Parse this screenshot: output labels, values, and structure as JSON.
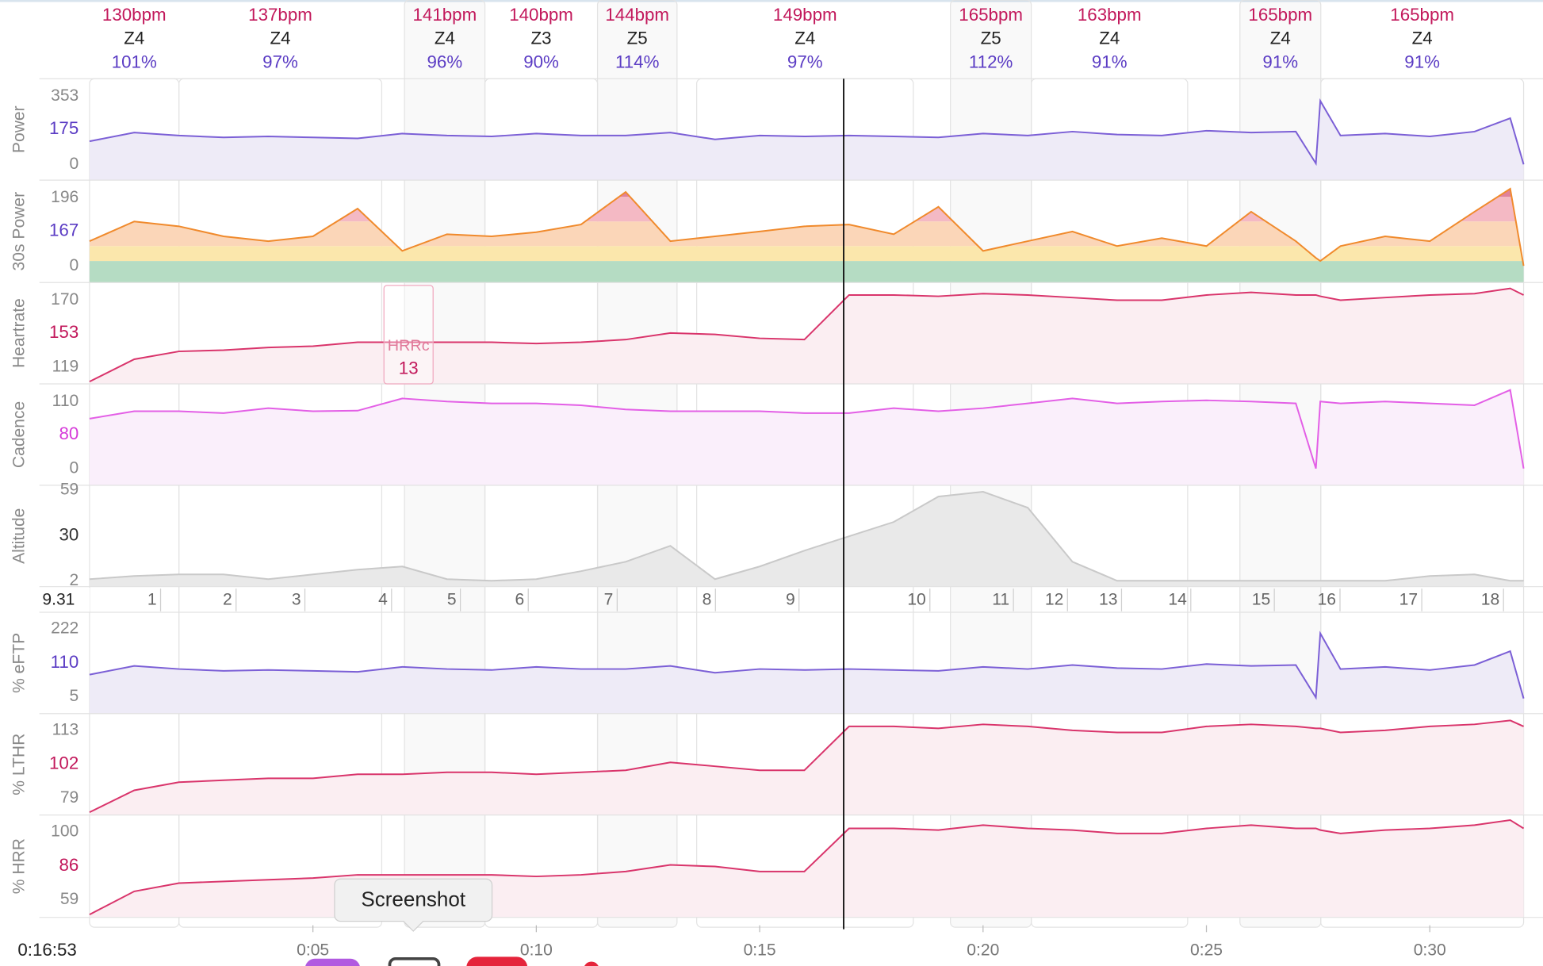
{
  "intervals": [
    {
      "start": 0,
      "end": 2.0,
      "hr": "130bpm",
      "zone": "Z4",
      "percent": "101%",
      "boxed": false
    },
    {
      "start": 2.0,
      "end": 6.54,
      "hr": "137bpm",
      "zone": "Z4",
      "percent": "97%",
      "boxed": false
    },
    {
      "start": 7.05,
      "end": 8.85,
      "hr": "141bpm",
      "zone": "Z4",
      "percent": "96%",
      "boxed": true
    },
    {
      "start": 8.85,
      "end": 11.37,
      "hr": "140bpm",
      "zone": "Z3",
      "percent": "90%",
      "boxed": false
    },
    {
      "start": 11.37,
      "end": 13.15,
      "hr": "144bpm",
      "zone": "Z5",
      "percent": "114%",
      "boxed": true
    },
    {
      "start": 13.59,
      "end": 18.44,
      "hr": "149bpm",
      "zone": "Z4",
      "percent": "97%",
      "boxed": false
    },
    {
      "start": 19.27,
      "end": 21.08,
      "hr": "165bpm",
      "zone": "Z5",
      "percent": "112%",
      "boxed": true
    },
    {
      "start": 21.08,
      "end": 24.58,
      "hr": "163bpm",
      "zone": "Z4",
      "percent": "91%",
      "boxed": false
    },
    {
      "start": 25.75,
      "end": 27.56,
      "hr": "165bpm",
      "zone": "Z4",
      "percent": "91%",
      "boxed": true
    },
    {
      "start": 27.56,
      "end": 32.1,
      "hr": "165bpm",
      "zone": "Z4",
      "percent": "91%",
      "boxed": false
    }
  ],
  "time_axis": {
    "xlim": [
      0,
      32.1
    ],
    "x": [
      0,
      1,
      2,
      3,
      4,
      5,
      6,
      7,
      8,
      9,
      10,
      11,
      12,
      13,
      14,
      15,
      16,
      17,
      18,
      19,
      20,
      21,
      22,
      23,
      24,
      25,
      26,
      27,
      27.45,
      27.55,
      28,
      29,
      30,
      31,
      31.8,
      32.1
    ],
    "xticks": [
      {
        "value": 5,
        "label": "0:05"
      },
      {
        "value": 10,
        "label": "0:10"
      },
      {
        "value": 15,
        "label": "0:15"
      },
      {
        "value": 20,
        "label": "0:20"
      },
      {
        "value": 25,
        "label": "0:25"
      },
      {
        "value": 30,
        "label": "0:30"
      }
    ]
  },
  "cursor": {
    "minute": 16.88,
    "label": "0:16:53",
    "distance": "9.31"
  },
  "distance_markers": {
    "km": [
      1,
      2,
      3,
      4,
      5,
      6,
      7,
      8,
      9,
      10,
      11,
      12,
      13,
      14,
      15,
      16,
      17,
      18
    ],
    "minutes": [
      1.59,
      3.28,
      4.82,
      6.76,
      8.3,
      9.82,
      11.81,
      14.01,
      15.88,
      18.81,
      20.68,
      21.89,
      23.1,
      24.65,
      26.52,
      27.99,
      29.82,
      31.65
    ]
  },
  "hrrc": {
    "start": 6.59,
    "end": 7.69,
    "label": "HRRc",
    "value": 13
  },
  "tooltip": "Screenshot",
  "chart_data": [
    {
      "type": "area",
      "ylabel": "Power",
      "ylim": [
        -82,
        445
      ],
      "yticks": [
        0,
        353
      ],
      "cursor_value": 175,
      "color": "#7b5fd6",
      "fill": "#eeebf7",
      "cursor_color": "#5b3cc4",
      "values": [
        120,
        165,
        150,
        140,
        145,
        140,
        135,
        160,
        150,
        145,
        160,
        150,
        150,
        165,
        130,
        150,
        145,
        150,
        145,
        140,
        160,
        150,
        170,
        155,
        150,
        175,
        165,
        170,
        5,
        330,
        150,
        160,
        145,
        170,
        240,
        0
      ]
    },
    {
      "type": "zone_area",
      "ylabel": "30s Power",
      "ylim": [
        -48,
        247
      ],
      "yticks": [
        0,
        196
      ],
      "cursor_value": 167,
      "color": "#f08a2c",
      "cursor_color": "#5b3cc4",
      "zones": [
        {
          "upto": 14,
          "color": "#b5dcc3"
        },
        {
          "upto": 57,
          "color": "#fbe7ac"
        },
        {
          "upto": 128,
          "color": "#fbd6b8"
        },
        {
          "upto": 199,
          "color": "#f4b9c4"
        },
        {
          "upto": 247,
          "color": "#e0829c"
        }
      ],
      "values": [
        71,
        128,
        114,
        85,
        71,
        85,
        165,
        43,
        91,
        85,
        97,
        119,
        213,
        71,
        85,
        99,
        114,
        119,
        91,
        170,
        43,
        71,
        99,
        57,
        80,
        57,
        156,
        71,
        23,
        14,
        57,
        85,
        71,
        156,
        222,
        0
      ]
    },
    {
      "type": "area",
      "ylabel": "Heartrate",
      "ylim": [
        106.25,
        183.5
      ],
      "yticks": [
        119,
        170
      ],
      "cursor_value": 153,
      "color": "#d9346b",
      "fill": "#fbeef2",
      "cursor_color": "#c2185b",
      "values": [
        108,
        125,
        131,
        132,
        134,
        135,
        138,
        138,
        138,
        138,
        137,
        138,
        140,
        145,
        144,
        141,
        140,
        174,
        174,
        173,
        175,
        174,
        172,
        170,
        170,
        174,
        176,
        174,
        174,
        173,
        170,
        172,
        174,
        175,
        179,
        174
      ]
    },
    {
      "type": "area",
      "ylabel": "Cadence",
      "ylim": [
        -27.5,
        139
      ],
      "yticks": [
        0,
        110
      ],
      "cursor_value": 80,
      "color": "#e35fe6",
      "fill": "#faeffb",
      "cursor_color": "#d63cd9",
      "values": [
        82,
        94,
        94,
        91,
        99,
        94,
        95,
        115,
        110,
        107,
        107,
        104,
        97,
        94,
        94,
        94,
        91,
        91,
        99,
        94,
        99,
        107,
        115,
        107,
        110,
        112,
        110,
        107,
        0,
        110,
        107,
        110,
        107,
        104,
        129,
        0
      ]
    },
    {
      "type": "area",
      "ylabel": "Altitude",
      "ylim": [
        -1.7,
        62.1
      ],
      "yticks": [
        2,
        59
      ],
      "cursor_value": 30,
      "color": "#c9c9c9",
      "fill": "#e9e9e9",
      "cursor_color": "#333333",
      "values": [
        3,
        5,
        6,
        6,
        3,
        6,
        9,
        11,
        3,
        2,
        3,
        8,
        14,
        24,
        3,
        11,
        21,
        30,
        39,
        55,
        58,
        48,
        14,
        2,
        2,
        2,
        2,
        2,
        2,
        2,
        2,
        2,
        5,
        6,
        2,
        2
      ]
    },
    {
      "type": "area",
      "ylabel": "% eFTP",
      "ylim": [
        -48.5,
        275.5
      ],
      "yticks": [
        5,
        222
      ],
      "cursor_value": 110,
      "color": "#7b5fd6",
      "fill": "#eeebf7",
      "cursor_color": "#5b3cc4",
      "values": [
        76,
        104,
        94,
        88,
        91,
        88,
        85,
        101,
        94,
        91,
        101,
        94,
        94,
        104,
        82,
        94,
        91,
        94,
        91,
        88,
        101,
        94,
        107,
        97,
        94,
        110,
        104,
        107,
        3,
        208,
        94,
        101,
        91,
        107,
        151,
        0
      ]
    },
    {
      "type": "area",
      "ylabel": "% LTHR",
      "ylim": [
        70.6,
        121.4
      ],
      "yticks": [
        79,
        113
      ],
      "cursor_value": 102,
      "color": "#d9346b",
      "fill": "#fbeef2",
      "cursor_color": "#c2185b",
      "values": [
        72,
        83,
        87,
        88,
        89,
        89,
        91,
        91,
        92,
        92,
        91,
        92,
        93,
        97,
        95,
        93,
        93,
        115,
        115,
        114,
        116,
        115,
        113,
        112,
        112,
        115,
        116,
        115,
        114,
        114,
        112,
        113,
        115,
        116,
        118,
        115
      ]
    },
    {
      "type": "area",
      "ylabel": "% HRR",
      "ylim": [
        48.3,
        110.1
      ],
      "yticks": [
        59,
        100
      ],
      "cursor_value": 86,
      "color": "#d9346b",
      "fill": "#fbeef2",
      "cursor_color": "#c2185b",
      "values": [
        50,
        64,
        69,
        70,
        71,
        72,
        74,
        74,
        74,
        74,
        73,
        74,
        76,
        80,
        79,
        76,
        76,
        102,
        102,
        101,
        104,
        102,
        101,
        99,
        99,
        102,
        104,
        102,
        102,
        101,
        99,
        101,
        102,
        104,
        107,
        102
      ]
    }
  ]
}
